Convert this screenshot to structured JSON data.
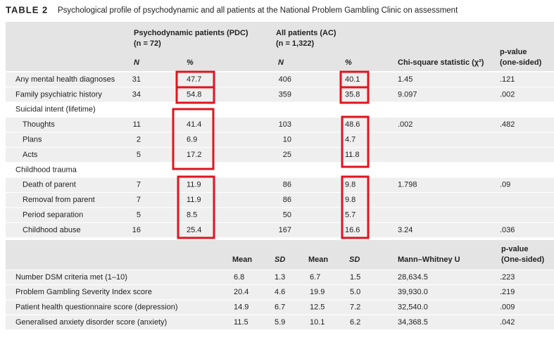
{
  "title": {
    "label": "TABLE 2",
    "text": "Psychological profile of psychodynamic and all patients at the National Problem Gambling Clinic on assessment"
  },
  "table1": {
    "groups": [
      {
        "name": "Psychodynamic patients (PDC)",
        "n": "(n = 72)"
      },
      {
        "name": "All patients (AC)",
        "n": "(n = 1,322)"
      }
    ],
    "columns": [
      "N",
      "%",
      "N",
      "%",
      "Chi-square statistic (χ²)",
      [
        "p-value",
        "(one-sided)"
      ]
    ],
    "rows": [
      {
        "label": "Any mental health diagnoses",
        "cells": [
          "31",
          "47.7",
          "406",
          "40.1",
          "1.45",
          ".121"
        ]
      },
      {
        "label": "Family psychiatric history",
        "cells": [
          "34",
          "54.8",
          "359",
          "35.8",
          "9.097",
          ".002"
        ]
      },
      {
        "label": "Suicidal intent (lifetime)"
      },
      {
        "label": "Thoughts",
        "sub": true,
        "cells": [
          "11",
          "41.4",
          "103",
          "48.6",
          ".002",
          ".482"
        ]
      },
      {
        "label": "Plans",
        "sub": true,
        "cells": [
          "2",
          "6.9",
          "10",
          "4.7",
          null,
          null
        ]
      },
      {
        "label": "Acts",
        "sub": true,
        "cells": [
          "5",
          "17.2",
          "25",
          "11.8",
          null,
          null
        ]
      },
      {
        "label": "Childhood trauma"
      },
      {
        "label": "Death of parent",
        "sub": true,
        "cells": [
          "7",
          "11.9",
          "86",
          "9.8",
          "1.798",
          ".09"
        ]
      },
      {
        "label": "Removal from parent",
        "sub": true,
        "cells": [
          "7",
          "11.9",
          "86",
          "9.8",
          null,
          null
        ]
      },
      {
        "label": "Period separation",
        "sub": true,
        "cells": [
          "5",
          "8.5",
          "50",
          "5.7",
          null,
          null
        ]
      },
      {
        "label": "Childhood abuse",
        "sub": true,
        "cells": [
          "16",
          "25.4",
          "167",
          "16.6",
          "3.24",
          ".036"
        ]
      }
    ]
  },
  "table2": {
    "columns": [
      "Mean",
      "SD",
      "Mean",
      "SD",
      "Mann–Whitney U",
      [
        "p-value",
        "(One-sided)"
      ]
    ],
    "rows": [
      {
        "label": "Number DSM criteria met (1–10)",
        "cells": [
          "6.8",
          "1.3",
          "6.7",
          "1.5",
          "28,634.5",
          ".223"
        ]
      },
      {
        "label": "Problem Gambling Severity Index score",
        "cells": [
          "20.4",
          "4.6",
          "19.9",
          "5.0",
          "39,930.0",
          ".219"
        ]
      },
      {
        "label": "Patient health questionnaire score (depression)",
        "cells": [
          "14.9",
          "6.7",
          "12.5",
          "7.2",
          "32,540.0",
          ".009"
        ]
      },
      {
        "label": "Generalised anxiety disorder score (anxiety)",
        "cells": [
          "11.5",
          "5.9",
          "10.1",
          "6.2",
          "34,368.5",
          ".042"
        ]
      }
    ]
  }
}
